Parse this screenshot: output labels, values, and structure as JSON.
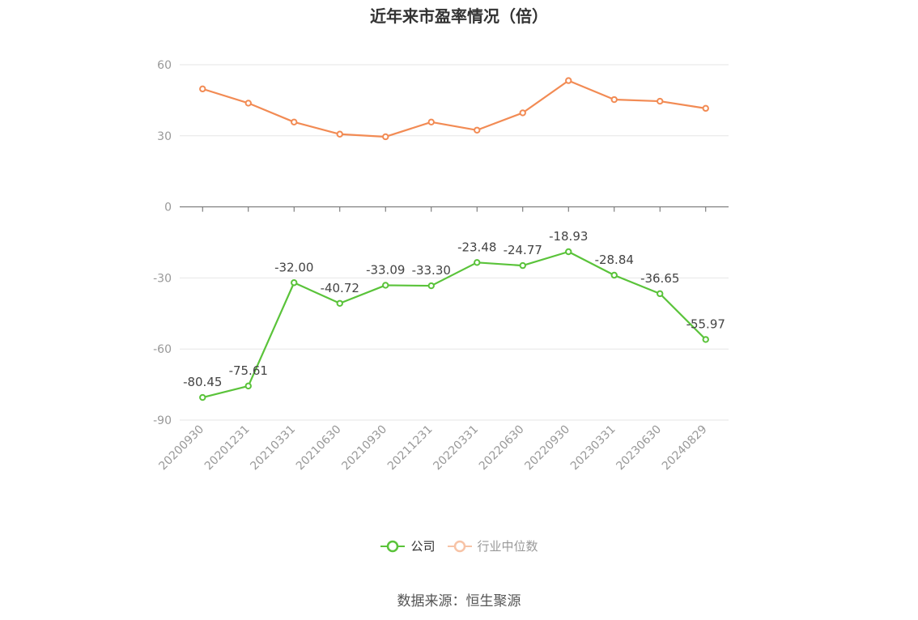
{
  "chart_data": {
    "type": "line",
    "title": "近年来市盈率情况（倍）",
    "categories": [
      "20200930",
      "20201231",
      "20210331",
      "20210630",
      "20210930",
      "20211231",
      "20220331",
      "20220630",
      "20220930",
      "20230331",
      "20230630",
      "20240829"
    ],
    "series": [
      {
        "name": "公司",
        "color": "#5ac33a",
        "values": [
          -80.45,
          -75.61,
          -32.0,
          -40.72,
          -33.09,
          -33.3,
          -23.48,
          -24.77,
          -18.93,
          -28.84,
          -36.65,
          -55.97
        ],
        "labels": [
          "-80.45",
          "-75.61",
          "-32.00",
          "-40.72",
          "-33.09",
          "-33.30",
          "-23.48",
          "-24.77",
          "-18.93",
          "-28.84",
          "-36.65",
          "-55.97"
        ]
      },
      {
        "name": "行业中位数",
        "color": "#f28b54",
        "values": [
          49.8,
          43.8,
          35.8,
          30.7,
          29.6,
          35.8,
          32.4,
          39.7,
          53.3,
          45.3,
          44.6,
          41.6
        ]
      }
    ],
    "ylim": [
      -90,
      60
    ],
    "yticks": [
      "60",
      "30",
      "0",
      "-30",
      "-60",
      "-90"
    ],
    "ytick_values": [
      60,
      30,
      0,
      -30,
      -60,
      -90
    ],
    "grid": true,
    "legend": "bottom"
  },
  "source": "数据来源：恒生聚源"
}
